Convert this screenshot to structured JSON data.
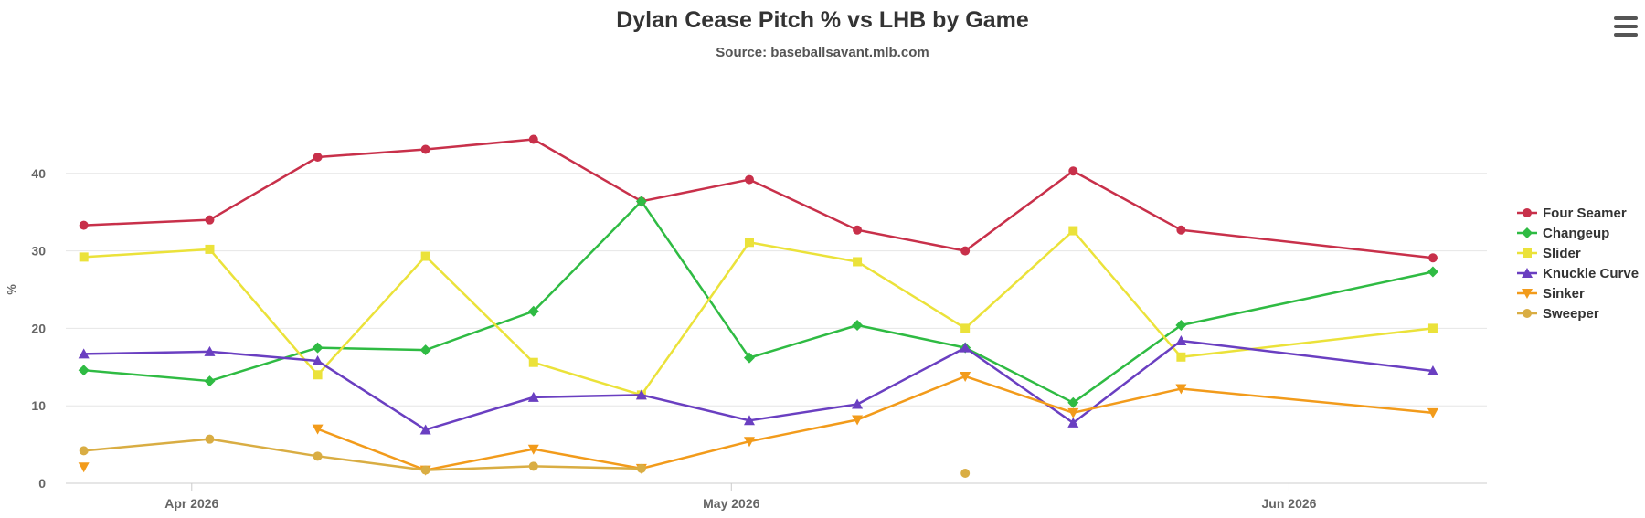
{
  "chart_data": {
    "type": "line",
    "title": "Dylan Cease Pitch % vs LHB by Game",
    "subtitle": "Source: baseballsavant.mlb.com",
    "ylabel": "%",
    "ylim": [
      0,
      50
    ],
    "yticks": [
      "0",
      "10",
      "20",
      "30",
      "40"
    ],
    "x_dates": [
      "2026-03-26",
      "2026-04-02",
      "2026-04-08",
      "2026-04-14",
      "2026-04-20",
      "2026-04-26",
      "2026-05-02",
      "2026-05-08",
      "2026-05-14",
      "2026-05-20",
      "2026-05-26",
      "2026-06-09"
    ],
    "xticks": [
      {
        "date": "2026-04-01",
        "label": "Apr 2026"
      },
      {
        "date": "2026-05-01",
        "label": "May 2026"
      },
      {
        "date": "2026-06-01",
        "label": "Jun 2026"
      }
    ],
    "grid": true,
    "legend_position": "right",
    "series": [
      {
        "name": "Four Seamer",
        "color": "#c8304a",
        "marker": "circle",
        "values": [
          33.3,
          34.0,
          42.1,
          43.1,
          44.4,
          36.4,
          39.2,
          32.7,
          30.0,
          40.3,
          32.7,
          29.1
        ]
      },
      {
        "name": "Changeup",
        "color": "#2fbb43",
        "marker": "diamond",
        "values": [
          14.6,
          13.2,
          17.5,
          17.2,
          22.2,
          36.4,
          16.2,
          20.4,
          17.5,
          10.4,
          20.4,
          27.3
        ]
      },
      {
        "name": "Slider",
        "color": "#ebe23a",
        "marker": "square",
        "values": [
          29.2,
          30.2,
          14.0,
          29.3,
          15.6,
          11.4,
          31.1,
          28.6,
          20.0,
          32.6,
          16.3,
          20.0
        ]
      },
      {
        "name": "Knuckle Curve",
        "color": "#6a3fc1",
        "marker": "triangle",
        "values": [
          16.7,
          17.0,
          15.8,
          6.9,
          11.1,
          11.4,
          8.1,
          10.2,
          17.5,
          7.8,
          18.4,
          14.5
        ]
      },
      {
        "name": "Sinker",
        "color": "#f29b1b",
        "marker": "triangle-down",
        "values": [
          2.1,
          null,
          7.0,
          1.7,
          4.4,
          1.9,
          5.4,
          8.2,
          13.8,
          9.1,
          12.2,
          9.1
        ]
      },
      {
        "name": "Sweeper",
        "color": "#d9ad43",
        "marker": "circle",
        "values": [
          4.2,
          5.7,
          3.5,
          1.7,
          2.2,
          1.9,
          null,
          null,
          1.3,
          null,
          null,
          null
        ]
      }
    ]
  }
}
